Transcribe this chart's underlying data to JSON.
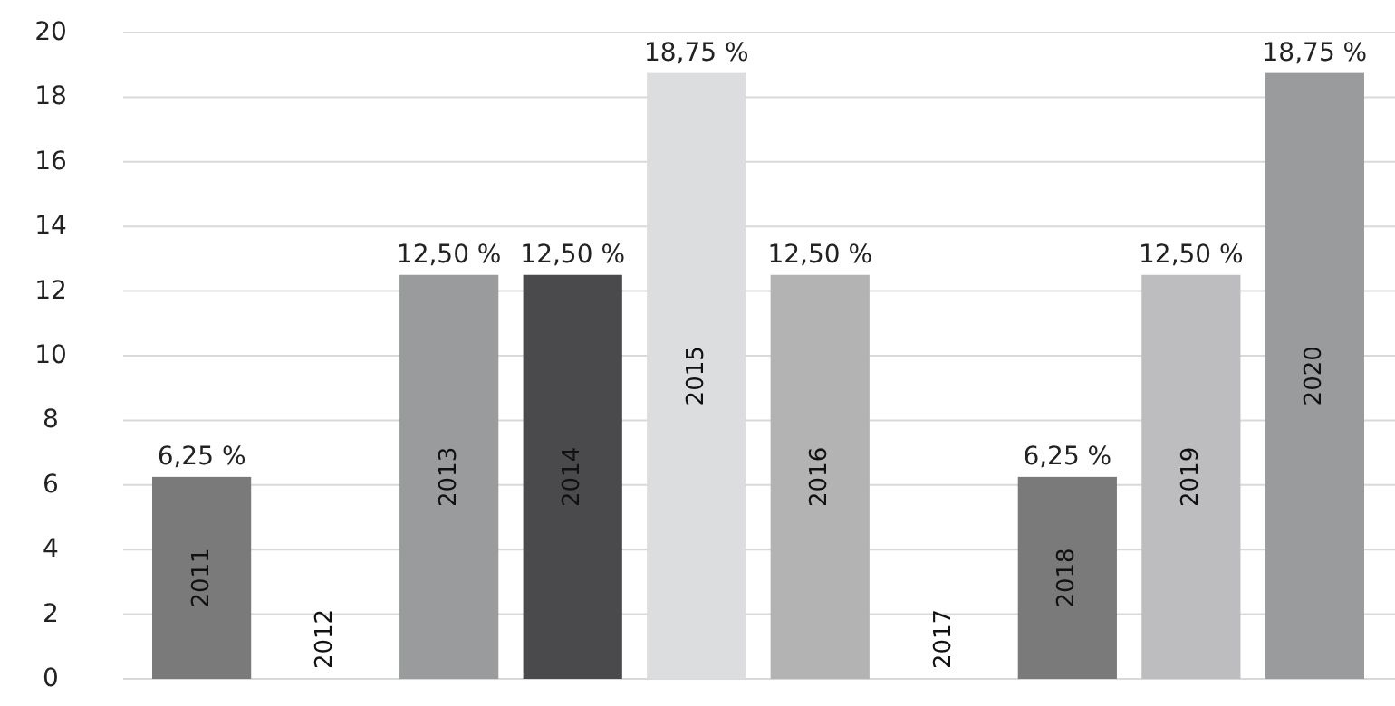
{
  "chart_data": {
    "type": "bar",
    "categories": [
      "2011",
      "2012",
      "2013",
      "2014",
      "2015",
      "2016",
      "2017",
      "2018",
      "2019",
      "2020"
    ],
    "values": [
      6.25,
      0,
      12.5,
      12.5,
      18.75,
      12.5,
      0,
      6.25,
      12.5,
      18.75
    ],
    "colors": [
      "#7a7a7a",
      "#7a7a7a",
      "#9a9b9d",
      "#4a4a4c",
      "#dcdddf",
      "#b3b3b3",
      "#b3b3b3",
      "#7a7a7a",
      "#bdbdbf",
      "#9a9b9d"
    ],
    "value_labels": [
      "6,25 %",
      null,
      "12,50 %",
      "12,50 %",
      "18,75 %",
      "12,50 %",
      null,
      "6,25 %",
      "12,50 %",
      "18,75 %"
    ],
    "ylim": [
      0,
      20
    ],
    "yticks": [
      0,
      2,
      4,
      6,
      8,
      10,
      12,
      14,
      16,
      18,
      20
    ],
    "grid": "y"
  }
}
